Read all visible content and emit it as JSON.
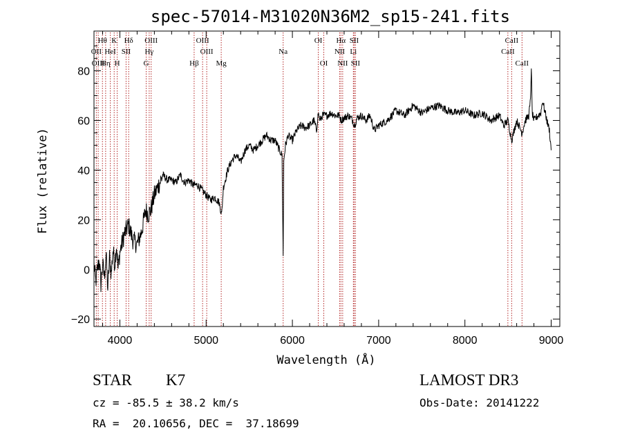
{
  "chart_data": {
    "type": "line",
    "title": "spec-57014-M31020N36M2_sp15-241.fits",
    "xlabel": "Wavelength (Å)",
    "ylabel": "Flux (relative)",
    "xlim": [
      3700,
      9100
    ],
    "ylim": [
      -23,
      96
    ],
    "xticks": [
      4000,
      5000,
      6000,
      7000,
      8000,
      9000
    ],
    "yticks": [
      -20,
      0,
      20,
      40,
      60,
      80
    ],
    "grid": false,
    "series": [
      {
        "name": "spectrum",
        "color": "#000000",
        "x": [
          3700,
          3720,
          3740,
          3760,
          3780,
          3800,
          3820,
          3840,
          3860,
          3880,
          3900,
          3920,
          3940,
          3960,
          3980,
          4000,
          4050,
          4100,
          4150,
          4200,
          4250,
          4300,
          4330,
          4360,
          4400,
          4450,
          4500,
          4550,
          4600,
          4650,
          4700,
          4750,
          4800,
          4850,
          4900,
          4950,
          5000,
          5050,
          5100,
          5150,
          5180,
          5200,
          5250,
          5300,
          5350,
          5400,
          5450,
          5500,
          5550,
          5600,
          5650,
          5700,
          5750,
          5800,
          5850,
          5880,
          5893,
          5900,
          5920,
          5950,
          6000,
          6050,
          6100,
          6150,
          6200,
          6250,
          6280,
          6300,
          6320,
          6350,
          6400,
          6450,
          6500,
          6550,
          6563,
          6600,
          6650,
          6700,
          6720,
          6750,
          6800,
          6850,
          6900,
          6950,
          7000,
          7100,
          7200,
          7300,
          7400,
          7500,
          7600,
          7700,
          7800,
          7900,
          8000,
          8100,
          8200,
          8300,
          8400,
          8450,
          8498,
          8542,
          8600,
          8662,
          8700,
          8740,
          8760,
          8770,
          8780,
          8800,
          8850,
          8880,
          8900,
          8950,
          8980,
          9000
        ],
        "y": [
          2,
          -5,
          0,
          4,
          -6,
          2,
          -3,
          6,
          -8,
          5,
          -2,
          8,
          2,
          10,
          0,
          7,
          14,
          18,
          12,
          10,
          15,
          24,
          22,
          24,
          30,
          34,
          38,
          36,
          36,
          35,
          38,
          35,
          36,
          34,
          34,
          32,
          30,
          28,
          29,
          27,
          22,
          33,
          40,
          44,
          46,
          43,
          48,
          50,
          48,
          50,
          52,
          54,
          52,
          52,
          48,
          46,
          5,
          44,
          50,
          54,
          52,
          56,
          58,
          57,
          58,
          60,
          56,
          63,
          60,
          62,
          62,
          63,
          62,
          62,
          60,
          61,
          62,
          60,
          58,
          61,
          62,
          60,
          62,
          56,
          58,
          60,
          64,
          62,
          66,
          63,
          65,
          66,
          64,
          63,
          64,
          62,
          63,
          60,
          62,
          58,
          60,
          52,
          60,
          55,
          60,
          62,
          68,
          82,
          63,
          60,
          62,
          63,
          68,
          60,
          56,
          48
        ]
      }
    ],
    "line_labels": [
      {
        "name": "Hθ",
        "x": 3798,
        "row": 1
      },
      {
        "name": "OII",
        "x": 3727,
        "row": 2
      },
      {
        "name": "OIII",
        "x": 3749,
        "row": 3
      },
      {
        "name": "K",
        "x": 3934,
        "row": 1
      },
      {
        "name": "HeI",
        "x": 3889,
        "row": 2
      },
      {
        "name": "Hη",
        "x": 3835,
        "row": 3
      },
      {
        "name": "SII",
        "x": 4072,
        "row": 2
      },
      {
        "name": "H",
        "x": 3969,
        "row": 3
      },
      {
        "name": "Hδ",
        "x": 4102,
        "row": 1
      },
      {
        "name": "OIII",
        "x": 4363,
        "row": 1
      },
      {
        "name": "Hγ",
        "x": 4340,
        "row": 2
      },
      {
        "name": "G",
        "x": 4305,
        "row": 3
      },
      {
        "name": "OIII",
        "x": 4959,
        "row": 1
      },
      {
        "name": "OIII",
        "x": 5007,
        "row": 2
      },
      {
        "name": "Hβ",
        "x": 4861,
        "row": 3
      },
      {
        "name": "Mg",
        "x": 5175,
        "row": 3
      },
      {
        "name": "Na",
        "x": 5893,
        "row": 2
      },
      {
        "name": "OI",
        "x": 6300,
        "row": 1
      },
      {
        "name": "OI",
        "x": 6364,
        "row": 3
      },
      {
        "name": "Hα",
        "x": 6563,
        "row": 1
      },
      {
        "name": "SII",
        "x": 6716,
        "row": 1
      },
      {
        "name": "NII",
        "x": 6548,
        "row": 2
      },
      {
        "name": "Li",
        "x": 6707,
        "row": 2
      },
      {
        "name": "NII",
        "x": 6583,
        "row": 3
      },
      {
        "name": "SII",
        "x": 6731,
        "row": 3
      },
      {
        "name": "CaII",
        "x": 8542,
        "row": 1
      },
      {
        "name": "CaII",
        "x": 8498,
        "row": 2
      },
      {
        "name": "CaII",
        "x": 8662,
        "row": 3
      }
    ]
  },
  "info": {
    "class_label": "STAR",
    "subclass": "K7",
    "survey": "LAMOST DR3",
    "cz": "cz = -85.5 ± 38.2 km/s",
    "obs_date": "Obs-Date: 20141222",
    "coords": "RA =  20.10656, DEC =  37.18699"
  },
  "colors": {
    "spectrum": "#000000",
    "line_markers": "#b22222",
    "axis": "#000000"
  }
}
